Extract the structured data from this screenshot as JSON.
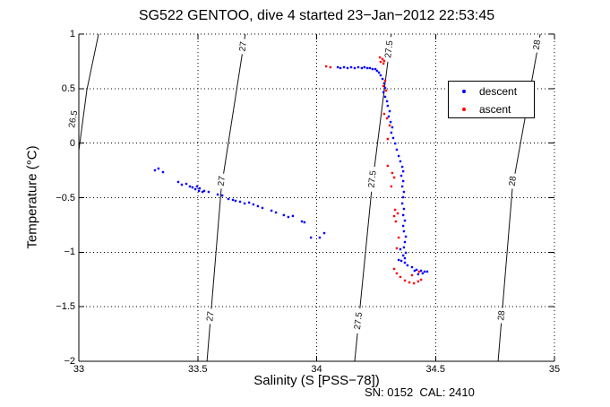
{
  "title": "SG522 GENTOO, dive 4 started 23−Jan−2012 22:53:45",
  "annotation": "SN: 0152  CAL: 2410",
  "colors": {
    "descent": "#0000ff",
    "ascent": "#ff0000",
    "contour": "#111111",
    "grid": "#000000"
  },
  "chart_data": {
    "type": "scatter",
    "title": "SG522 GENTOO, dive 4 started 23−Jan−2012 22:53:45",
    "xlabel": "Salinity (S [PSS−78])",
    "ylabel": "Temperature (°C)",
    "xlim": [
      33,
      35
    ],
    "ylim": [
      -2,
      1
    ],
    "xticks": [
      33,
      33.5,
      34,
      34.5,
      35
    ],
    "yticks": [
      1,
      0.5,
      0,
      -0.5,
      -1,
      -1.5,
      -2
    ],
    "xtick_labels": [
      "33",
      "33.5",
      "34",
      "34.5",
      "35"
    ],
    "ytick_labels": [
      "1",
      "0.5",
      "0",
      "−0.5",
      "−1",
      "−1.5",
      "−2"
    ],
    "grid": true,
    "legend": {
      "position": "upper right",
      "entries": [
        {
          "label": "descent",
          "color": "#0000ff"
        },
        {
          "label": "ascent",
          "color": "#ff0000"
        }
      ]
    },
    "contours": [
      {
        "value": "26.5",
        "path": [
          [
            33.0,
            -0.068
          ],
          [
            33.034,
            0.49
          ],
          [
            33.083,
            1.0
          ]
        ],
        "labels": [
          [
            32.978,
            0.219
          ]
        ]
      },
      {
        "value": "27",
        "path": [
          [
            33.539,
            -2.0
          ],
          [
            33.599,
            -0.414
          ],
          [
            33.7,
            1.0
          ]
        ],
        "labels": [
          [
            33.692,
            0.885
          ],
          [
            33.602,
            -0.348
          ],
          [
            33.555,
            -1.589
          ]
        ]
      },
      {
        "value": "27.5",
        "path": [
          [
            34.16,
            -2.0
          ],
          [
            34.232,
            -0.414
          ],
          [
            34.314,
            1.0
          ]
        ],
        "labels": [
          [
            34.306,
            0.86
          ],
          [
            34.236,
            -0.331
          ],
          [
            34.177,
            -1.63
          ]
        ]
      },
      {
        "value": "28",
        "path": [
          [
            34.763,
            -2.0
          ],
          [
            34.823,
            -0.414
          ],
          [
            34.94,
            1.0
          ]
        ],
        "labels": [
          [
            34.928,
            0.901
          ],
          [
            34.826,
            -0.348
          ],
          [
            34.779,
            -1.581
          ]
        ]
      }
    ],
    "series": [
      {
        "name": "descent",
        "color": "#0000ff",
        "points": [
          [
            33.32,
            -0.249
          ],
          [
            33.335,
            -0.233
          ],
          [
            33.354,
            -0.266
          ],
          [
            33.418,
            -0.356
          ],
          [
            33.433,
            -0.381
          ],
          [
            33.452,
            -0.373
          ],
          [
            33.467,
            -0.397
          ],
          [
            33.478,
            -0.406
          ],
          [
            33.49,
            -0.422
          ],
          [
            33.497,
            -0.397
          ],
          [
            33.505,
            -0.438
          ],
          [
            33.508,
            -0.414
          ],
          [
            33.52,
            -0.447
          ],
          [
            33.527,
            -0.438
          ],
          [
            33.546,
            -0.447
          ],
          [
            33.584,
            -0.471
          ],
          [
            33.603,
            -0.48
          ],
          [
            33.629,
            -0.512
          ],
          [
            33.648,
            -0.52
          ],
          [
            33.659,
            -0.529
          ],
          [
            33.678,
            -0.537
          ],
          [
            33.697,
            -0.553
          ],
          [
            33.716,
            -0.545
          ],
          [
            33.734,
            -0.562
          ],
          [
            33.753,
            -0.578
          ],
          [
            33.772,
            -0.594
          ],
          [
            33.81,
            -0.619
          ],
          [
            33.829,
            -0.636
          ],
          [
            33.862,
            -0.66
          ],
          [
            33.881,
            -0.677
          ],
          [
            33.9,
            -0.668
          ],
          [
            33.938,
            -0.718
          ],
          [
            33.949,
            -0.726
          ],
          [
            33.976,
            -0.866
          ],
          [
            34.013,
            -0.866
          ],
          [
            34.032,
            -0.825
          ],
          [
            34.089,
            0.696
          ],
          [
            34.1,
            0.688
          ],
          [
            34.115,
            0.696
          ],
          [
            34.13,
            0.688
          ],
          [
            34.145,
            0.696
          ],
          [
            34.16,
            0.688
          ],
          [
            34.175,
            0.696
          ],
          [
            34.19,
            0.688
          ],
          [
            34.201,
            0.696
          ],
          [
            34.213,
            0.688
          ],
          [
            34.224,
            0.688
          ],
          [
            34.235,
            0.679
          ],
          [
            34.247,
            0.679
          ],
          [
            34.254,
            0.663
          ],
          [
            34.262,
            0.647
          ],
          [
            34.269,
            0.622
          ],
          [
            34.277,
            0.589
          ],
          [
            34.284,
            0.548
          ],
          [
            34.288,
            0.507
          ],
          [
            34.281,
            0.466
          ],
          [
            34.288,
            0.425
          ],
          [
            34.296,
            0.384
          ],
          [
            34.299,
            0.342
          ],
          [
            34.307,
            0.293
          ],
          [
            34.303,
            0.244
          ],
          [
            34.311,
            0.194
          ],
          [
            34.318,
            0.145
          ],
          [
            34.314,
            0.096
          ],
          [
            34.322,
            0.047
          ],
          [
            34.33,
            -0.003
          ],
          [
            34.337,
            -0.06
          ],
          [
            34.345,
            -0.118
          ],
          [
            34.352,
            -0.167
          ],
          [
            34.36,
            -0.217
          ],
          [
            34.364,
            -0.258
          ],
          [
            34.356,
            -0.299
          ],
          [
            34.364,
            -0.348
          ],
          [
            34.36,
            -0.397
          ],
          [
            34.367,
            -0.447
          ],
          [
            34.364,
            -0.496
          ],
          [
            34.36,
            -0.553
          ],
          [
            34.367,
            -0.603
          ],
          [
            34.364,
            -0.66
          ],
          [
            34.371,
            -0.71
          ],
          [
            34.364,
            -0.759
          ],
          [
            34.367,
            -0.808
          ],
          [
            34.375,
            -0.857
          ],
          [
            34.371,
            -0.907
          ],
          [
            34.367,
            -0.956
          ],
          [
            34.375,
            -1.005
          ],
          [
            34.371,
            -1.055
          ],
          [
            34.352,
            -0.973
          ],
          [
            34.345,
            -1.071
          ],
          [
            34.364,
            -1.03
          ],
          [
            34.356,
            -1.079
          ],
          [
            34.371,
            -1.096
          ],
          [
            34.382,
            -1.12
          ],
          [
            34.401,
            -1.137
          ],
          [
            34.42,
            -1.161
          ],
          [
            34.439,
            -1.17
          ],
          [
            34.454,
            -1.178
          ],
          [
            34.465,
            -1.178
          ],
          [
            34.446,
            -1.194
          ],
          [
            34.427,
            -1.202
          ],
          [
            34.412,
            -1.17
          ]
        ]
      },
      {
        "name": "ascent",
        "color": "#ff0000",
        "points": [
          [
            34.04,
            0.704
          ],
          [
            34.058,
            0.696
          ],
          [
            34.266,
            0.786
          ],
          [
            34.277,
            0.77
          ],
          [
            34.284,
            0.753
          ],
          [
            34.269,
            0.745
          ],
          [
            34.281,
            0.729
          ],
          [
            34.288,
            0.573
          ],
          [
            34.281,
            0.523
          ],
          [
            34.292,
            0.482
          ],
          [
            34.284,
            0.268
          ],
          [
            34.296,
            0.227
          ],
          [
            34.307,
            0.162
          ],
          [
            34.299,
            0.038
          ],
          [
            34.299,
            -0.208
          ],
          [
            34.318,
            -0.274
          ],
          [
            34.326,
            -0.315
          ],
          [
            34.314,
            -0.397
          ],
          [
            34.33,
            -0.611
          ],
          [
            34.341,
            -0.644
          ],
          [
            34.326,
            -0.669
          ],
          [
            34.333,
            -0.718
          ],
          [
            34.345,
            -0.866
          ],
          [
            34.337,
            -0.964
          ],
          [
            34.326,
            -1.153
          ],
          [
            34.337,
            -1.194
          ],
          [
            34.352,
            -1.227
          ],
          [
            34.371,
            -1.26
          ],
          [
            34.39,
            -1.277
          ],
          [
            34.409,
            -1.285
          ],
          [
            34.427,
            -1.268
          ],
          [
            34.439,
            -1.252
          ],
          [
            34.431,
            -1.178
          ],
          [
            34.401,
            -1.211
          ]
        ]
      }
    ]
  }
}
